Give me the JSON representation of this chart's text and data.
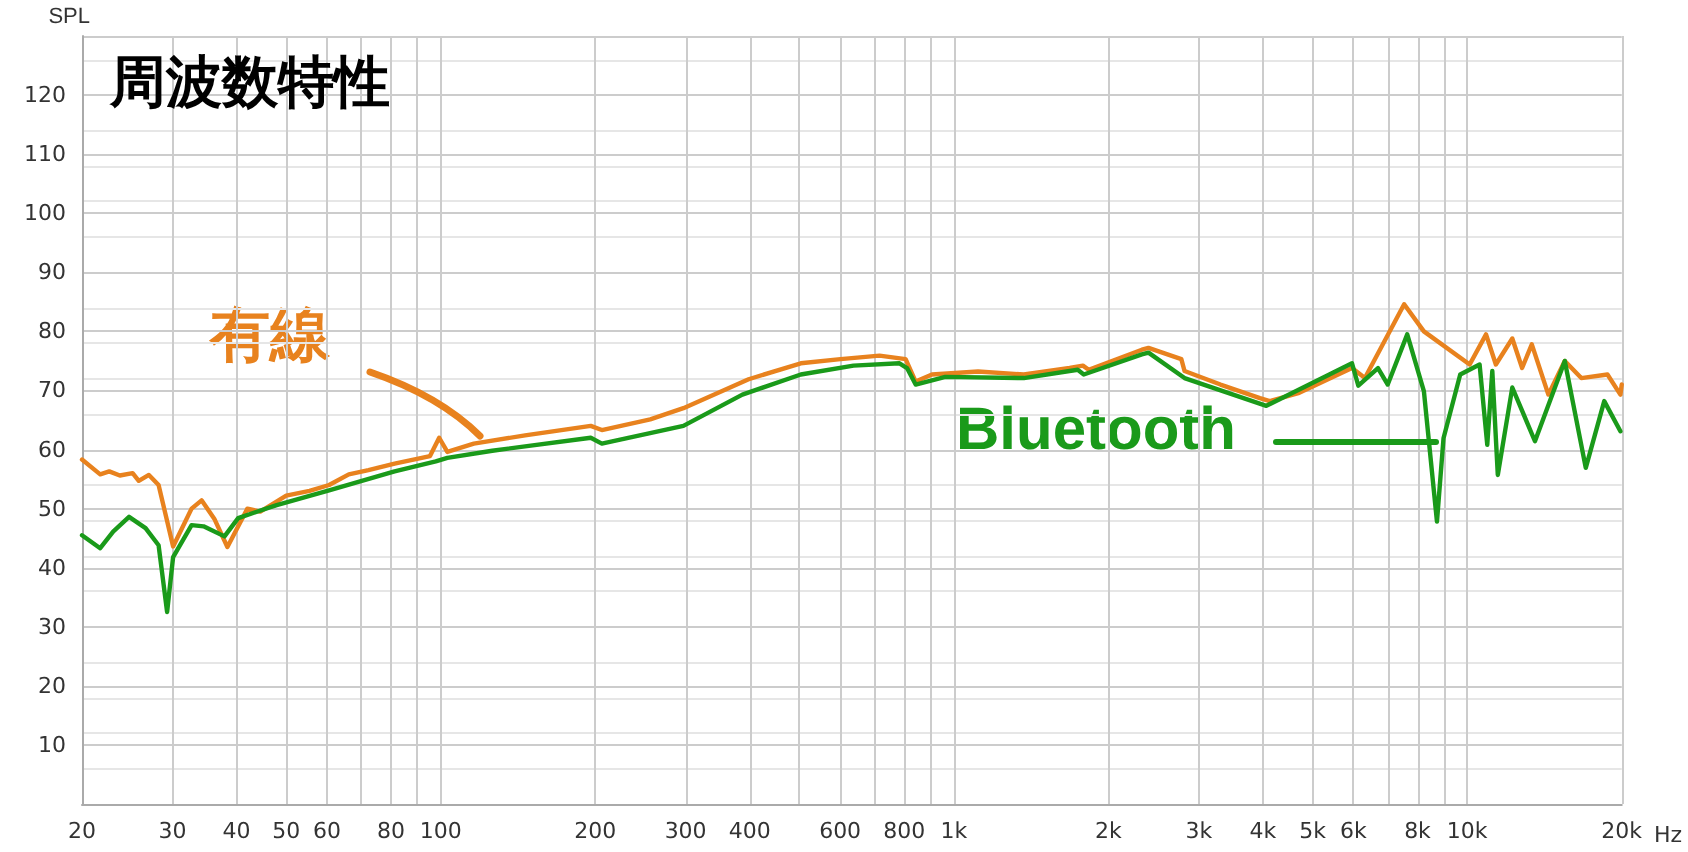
{
  "chart_data": {
    "type": "line",
    "title": "周波数特性",
    "ylabel": "SPL",
    "series": [
      {
        "name": "有線",
        "color": "#e8821e",
        "x": [
          20,
          21.7,
          22.6,
          23.7,
          25.1,
          25.8,
          27,
          28.2,
          30.1,
          32.7,
          34.2,
          36.2,
          38.4,
          42,
          44.5,
          50,
          55.5,
          60.6,
          66.2,
          72.3,
          81.3,
          95.3,
          99.3,
          103,
          116,
          146,
          196,
          206,
          256,
          297,
          398,
          503,
          601,
          716,
          805,
          842,
          906,
          1114,
          1368,
          1680,
          1783,
          1830,
          2323,
          2393,
          2773,
          2813,
          3305,
          3945,
          4124,
          4707,
          5963,
          6318,
          7535,
          8232,
          10110,
          10880,
          11370,
          12240,
          12790,
          13360,
          14390,
          15490,
          16680,
          18760,
          19880,
          20000
        ],
        "values": [
          58.3,
          55.8,
          56.3,
          55.6,
          56,
          54.7,
          55.7,
          54,
          43.6,
          50,
          51.4,
          48.3,
          43.5,
          50,
          49.5,
          52.2,
          53,
          54,
          55.8,
          56.5,
          57.6,
          58.9,
          62,
          59.6,
          61,
          62.4,
          64,
          63.3,
          65.1,
          67,
          71.9,
          74.6,
          75.3,
          75.9,
          75.3,
          71.5,
          72.7,
          73.2,
          72.7,
          73.8,
          74.2,
          73.5,
          76.9,
          77.2,
          75.3,
          73.3,
          71,
          68.7,
          68.2,
          69.6,
          73.8,
          72.1,
          84.6,
          80,
          74.4,
          79.5,
          74.4,
          78.8,
          73.8,
          77.8,
          69.3,
          75,
          72.1,
          72.7,
          69.3,
          71
        ]
      },
      {
        "name": "Bluetooth",
        "color": "#1a9a1a",
        "x": [
          20,
          21.7,
          23,
          24.7,
          26.6,
          28.2,
          29.3,
          30.1,
          32.7,
          34.5,
          37.9,
          40.3,
          47.9,
          60.6,
          81.3,
          97.8,
          103,
          126,
          196,
          206,
          297,
          387,
          503,
          637,
          783,
          810,
          842,
          962,
          1368,
          1742,
          1790,
          2323,
          2393,
          2813,
          4060,
          5963,
          6135,
          6700,
          7000,
          7640,
          8232,
          8730,
          8990,
          9690,
          10570,
          10940,
          11190,
          11470,
          12240,
          13550,
          15490,
          17020,
          18490,
          19880
        ],
        "values": [
          45.5,
          43.3,
          46.1,
          48.6,
          46.7,
          43.8,
          32.5,
          41.8,
          47.2,
          47,
          45.3,
          48.4,
          50.6,
          53.1,
          56.3,
          58,
          58.6,
          59.8,
          62,
          61,
          64,
          69.3,
          72.7,
          74.2,
          74.6,
          73.8,
          71,
          72.3,
          72.1,
          73.5,
          72.7,
          76.1,
          76.4,
          72.1,
          67.4,
          74.6,
          70.8,
          73.8,
          71,
          79.5,
          69.9,
          47.8,
          61.9,
          72.7,
          74.4,
          60.8,
          73.3,
          55.7,
          70.5,
          61.4,
          75,
          56.9,
          68.2,
          63.1
        ]
      }
    ],
    "log": "x",
    "xlim": [
      20,
      20000
    ],
    "xticks": [
      20,
      30,
      40,
      50,
      60,
      {
        "value": 70,
        "label": null
      },
      80,
      {
        "value": 90,
        "label": null
      },
      100,
      200,
      300,
      400,
      {
        "value": 500,
        "label": null
      },
      600,
      {
        "value": 700,
        "label": null
      },
      800,
      {
        "value": 900,
        "label": null
      },
      {
        "value": 1000,
        "label": "1k"
      },
      {
        "value": 2000,
        "label": "2k"
      },
      {
        "value": 3000,
        "label": "3k"
      },
      {
        "value": 4000,
        "label": "4k"
      },
      {
        "value": 5000,
        "label": "5k"
      },
      {
        "value": 6000,
        "label": "6k"
      },
      {
        "value": 7000,
        "label": null
      },
      {
        "value": 8000,
        "label": "8k"
      },
      {
        "value": 9000,
        "label": null
      },
      {
        "value": 10000,
        "label": "10k"
      },
      {
        "value": 20000,
        "label": "20k"
      }
    ],
    "xlabel": "Hz",
    "ylim": [
      0,
      130
    ],
    "yticks": [
      {
        "value": 0,
        "label": null
      },
      10,
      20,
      30,
      40,
      50,
      60,
      70,
      80,
      90,
      100,
      110,
      120,
      {
        "value": 130,
        "label": null
      }
    ],
    "grid": true,
    "marker": "none",
    "line_style": "solid"
  }
}
